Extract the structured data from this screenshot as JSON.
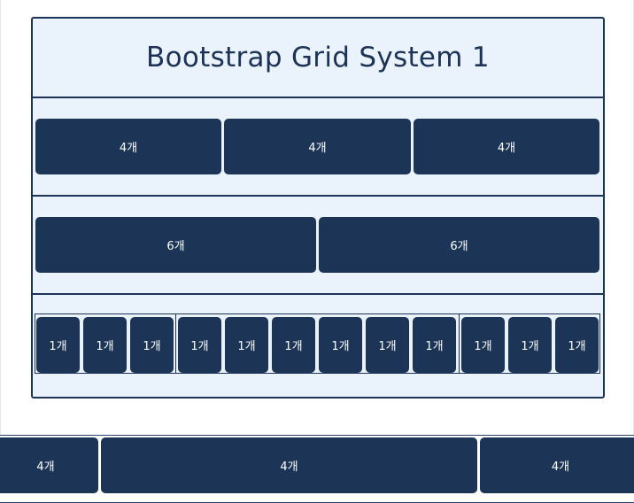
{
  "title": "Bootstrap Grid System 1",
  "row1": [
    "4개",
    "4개",
    "4개"
  ],
  "row2": [
    "6개",
    "6개"
  ],
  "row3": [
    "1개",
    "1개",
    "1개",
    "1개",
    "1개",
    "1개",
    "1개",
    "1개",
    "1개",
    "1개",
    "1개",
    "1개"
  ],
  "bottom_row": [
    "4개",
    "4개",
    "4개"
  ],
  "colors": {
    "cell": "#1c3557",
    "container_bg": "#eaf3fb",
    "border": "#1c3357",
    "text": "#ffffff"
  }
}
